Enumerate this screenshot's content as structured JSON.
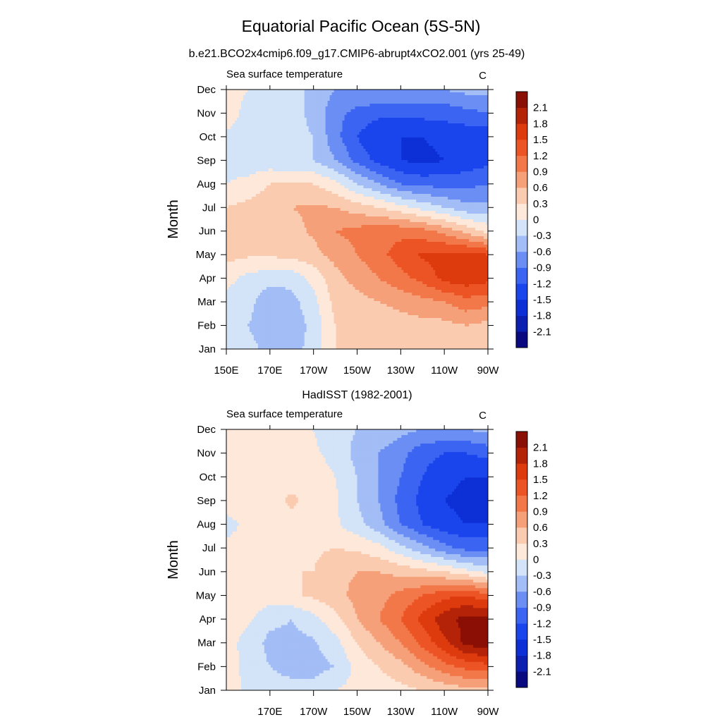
{
  "figure": {
    "title": "Equatorial Pacific Ocean (5S-5N)",
    "subtitle": "b.e21.BCO2x4cmip6.f09_g17.CMIP6-abrupt4xCO2.001 (yrs 25-49)"
  },
  "colorbar": {
    "levels": [
      "-2.1",
      "-1.8",
      "-1.5",
      "-1.2",
      "-0.9",
      "-0.6",
      "-0.3",
      "0",
      "0.3",
      "0.6",
      "0.9",
      "1.2",
      "1.5",
      "1.8",
      "2.1"
    ],
    "colors": [
      "#0a0a80",
      "#0b1fb0",
      "#0d2fd6",
      "#1a45ec",
      "#3c64f2",
      "#6b8ef4",
      "#a3bdf6",
      "#d3e3f8",
      "#fde8da",
      "#fbcbb0",
      "#f6a07a",
      "#f2784a",
      "#ed5425",
      "#dd3a0e",
      "#b42308",
      "#8a0f04"
    ]
  },
  "chart_data": [
    {
      "type": "heatmap",
      "title": "",
      "left_label": "Sea surface temperature",
      "right_label": "C",
      "ylabel": "Month",
      "x_tick_labels": [
        "150E",
        "170E",
        "170W",
        "150W",
        "130W",
        "110W",
        "90W"
      ],
      "x_ticks_deg_east": [
        150,
        170,
        190,
        210,
        230,
        250,
        270
      ],
      "xlim": [
        150,
        270
      ],
      "y_tick_labels": [
        "Jan",
        "Feb",
        "Mar",
        "Apr",
        "May",
        "Jun",
        "Jul",
        "Aug",
        "Sep",
        "Oct",
        "Nov",
        "Dec"
      ],
      "ylim": [
        1,
        12
      ],
      "x": [
        150,
        160,
        170,
        180,
        190,
        200,
        210,
        220,
        230,
        240,
        250,
        260,
        270
      ],
      "z": [
        [
          -0.15,
          -0.2,
          -0.4,
          -0.4,
          -0.2,
          0.3,
          0.3,
          0.3,
          0.3,
          0.3,
          0.3,
          0.3,
          0.3
        ],
        [
          -0.15,
          -0.3,
          -0.5,
          -0.5,
          -0.2,
          0.3,
          0.35,
          0.4,
          0.45,
          0.5,
          0.5,
          0.6,
          0.5
        ],
        [
          -0.1,
          -0.2,
          -0.5,
          -0.4,
          -0.1,
          0.4,
          0.5,
          0.6,
          0.7,
          0.8,
          0.9,
          1.1,
          1.0
        ],
        [
          0.1,
          -0.1,
          -0.2,
          -0.2,
          0.1,
          0.5,
          0.7,
          0.9,
          1.1,
          1.3,
          1.6,
          1.7,
          1.6
        ],
        [
          0.4,
          0.35,
          0.35,
          0.4,
          0.5,
          0.7,
          0.9,
          1.1,
          1.35,
          1.55,
          1.6,
          1.6,
          1.5
        ],
        [
          0.4,
          0.4,
          0.45,
          0.5,
          0.65,
          0.9,
          1.0,
          1.1,
          1.1,
          1.0,
          0.8,
          0.5,
          0.2
        ],
        [
          0.3,
          0.4,
          0.5,
          0.6,
          0.65,
          0.6,
          0.45,
          0.3,
          0.1,
          -0.1,
          -0.3,
          -0.5,
          -0.5
        ],
        [
          0.0,
          0.1,
          0.3,
          0.35,
          0.3,
          0.1,
          -0.3,
          -0.6,
          -0.9,
          -1.0,
          -1.0,
          -1.0,
          -0.9
        ],
        [
          -0.1,
          -0.2,
          -0.2,
          -0.3,
          -0.3,
          -0.6,
          -1.0,
          -1.3,
          -1.5,
          -1.6,
          -1.5,
          -1.4,
          -1.3
        ],
        [
          -0.05,
          -0.1,
          -0.1,
          -0.2,
          -0.3,
          -0.8,
          -1.2,
          -1.5,
          -1.5,
          -1.5,
          -1.4,
          -1.4,
          -1.4
        ],
        [
          0.15,
          -0.1,
          -0.1,
          -0.15,
          -0.4,
          -0.8,
          -1.0,
          -1.1,
          -1.1,
          -1.1,
          -1.1,
          -1.0,
          -0.9
        ],
        [
          0.1,
          0.0,
          -0.1,
          -0.15,
          -0.4,
          -0.6,
          -0.6,
          -0.6,
          -0.6,
          -0.6,
          -0.6,
          -0.5,
          -0.5
        ]
      ]
    },
    {
      "type": "heatmap",
      "title": "HadISST (1982-2001)",
      "left_label": "Sea surface temperature",
      "right_label": "C",
      "ylabel": "Month",
      "x_tick_labels": [
        "170E",
        "170W",
        "150W",
        "130W",
        "110W",
        "90W"
      ],
      "x_ticks_deg_east": [
        170,
        190,
        210,
        230,
        250,
        270
      ],
      "xlim": [
        150,
        270
      ],
      "y_tick_labels": [
        "Jan",
        "Feb",
        "Mar",
        "Apr",
        "May",
        "Jun",
        "Jul",
        "Aug",
        "Sep",
        "Oct",
        "Nov",
        "Dec"
      ],
      "ylim": [
        1,
        12
      ],
      "x": [
        150,
        160,
        170,
        180,
        190,
        200,
        210,
        220,
        230,
        240,
        250,
        260,
        270
      ],
      "z": [
        [
          0.2,
          -0.1,
          -0.2,
          -0.2,
          -0.2,
          0.0,
          0.1,
          0.15,
          0.2,
          0.3,
          0.4,
          0.5,
          0.5
        ],
        [
          0.15,
          -0.1,
          -0.3,
          -0.4,
          -0.4,
          -0.3,
          0.1,
          0.3,
          0.5,
          0.8,
          1.1,
          1.3,
          1.4
        ],
        [
          0.1,
          -0.1,
          -0.4,
          -0.4,
          -0.35,
          -0.1,
          0.3,
          0.6,
          0.9,
          1.3,
          1.7,
          2.2,
          2.3
        ],
        [
          0.15,
          0.05,
          -0.2,
          -0.3,
          -0.1,
          0.2,
          0.6,
          0.9,
          1.2,
          1.6,
          2.0,
          2.2,
          2.2
        ],
        [
          0.2,
          0.15,
          0.15,
          0.25,
          0.35,
          0.5,
          0.7,
          0.8,
          1.0,
          1.2,
          1.4,
          1.5,
          1.3
        ],
        [
          0.2,
          0.2,
          0.2,
          0.3,
          0.3,
          0.5,
          0.6,
          0.6,
          0.5,
          0.4,
          0.3,
          0.1,
          -0.1
        ],
        [
          0.1,
          0.15,
          0.2,
          0.25,
          0.25,
          0.3,
          0.25,
          0.1,
          -0.2,
          -0.5,
          -0.8,
          -1.0,
          -1.0
        ],
        [
          -0.15,
          0.1,
          0.2,
          0.2,
          0.15,
          0.05,
          -0.2,
          -0.5,
          -0.9,
          -1.2,
          -1.4,
          -1.5,
          -1.5
        ],
        [
          0.2,
          0.3,
          0.2,
          0.35,
          0.2,
          0.05,
          -0.3,
          -0.6,
          -1.0,
          -1.3,
          -1.5,
          -1.6,
          -1.6
        ],
        [
          0.2,
          0.2,
          0.2,
          0.2,
          0.15,
          0.0,
          -0.3,
          -0.6,
          -0.9,
          -1.2,
          -1.4,
          -1.5,
          -1.5
        ],
        [
          0.2,
          0.2,
          0.2,
          0.15,
          0.05,
          -0.1,
          -0.4,
          -0.6,
          -0.8,
          -1.1,
          -1.2,
          -1.2,
          -1.1
        ],
        [
          0.2,
          0.2,
          0.2,
          0.05,
          0.0,
          -0.2,
          -0.3,
          -0.4,
          -0.5,
          -0.6,
          -0.6,
          -0.6,
          -0.5
        ]
      ]
    }
  ]
}
